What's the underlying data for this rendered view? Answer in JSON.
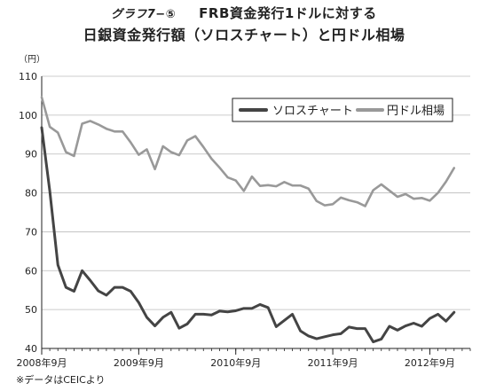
{
  "header": {
    "label": "グラフ7−⑤",
    "title_line1": "FRB資金発行1ドルに対する",
    "title_line2": "日銀資金発行額（ソロスチャート）と円ドル相場"
  },
  "footer": {
    "note": "※データはCEICより"
  },
  "chart_data": {
    "type": "line",
    "yunit": "（円）",
    "ylim": [
      40,
      110
    ],
    "yticks": [
      40,
      50,
      60,
      70,
      80,
      90,
      100,
      110
    ],
    "xlim": [
      0,
      53
    ],
    "xticks": [
      {
        "x": 0,
        "label": "2008年9月"
      },
      {
        "x": 12,
        "label": "2009年9月"
      },
      {
        "x": 24,
        "label": "2010年9月"
      },
      {
        "x": 36,
        "label": "2011年9月"
      },
      {
        "x": 48,
        "label": "2012年9月"
      }
    ],
    "grid": "horizontal",
    "legend_position": "top-right",
    "series": [
      {
        "name": "ソロスチャート",
        "color": "#444444",
        "values": [
          96.8,
          80.5,
          61.5,
          55.7,
          54.7,
          60.0,
          57.5,
          54.8,
          53.7,
          55.7,
          55.7,
          54.7,
          51.8,
          48.0,
          45.8,
          48.0,
          49.3,
          45.2,
          46.3,
          48.8,
          48.8,
          48.6,
          49.6,
          49.4,
          49.7,
          50.3,
          50.3,
          51.3,
          50.5,
          45.6,
          47.2,
          48.8,
          44.5,
          43.2,
          42.5,
          43.0,
          43.5,
          43.8,
          45.5,
          45.1,
          45.1,
          41.7,
          42.4,
          45.7,
          44.7,
          45.8,
          46.5,
          45.7,
          47.7,
          48.8,
          47.0,
          49.3
        ]
      },
      {
        "name": "円ドル相場",
        "color": "#999999",
        "values": [
          104.6,
          97.0,
          95.5,
          90.5,
          89.5,
          97.8,
          98.5,
          97.6,
          96.5,
          95.8,
          95.8,
          93.0,
          89.8,
          91.2,
          86.1,
          92.0,
          90.5,
          89.7,
          93.5,
          94.6,
          91.8,
          88.8,
          86.5,
          84.0,
          83.2,
          80.5,
          84.2,
          81.8,
          82.0,
          81.7,
          82.8,
          81.9,
          81.9,
          81.1,
          77.9,
          76.8,
          77.1,
          78.8,
          78.1,
          77.6,
          76.6,
          80.7,
          82.2,
          80.6,
          79.0,
          79.7,
          78.5,
          78.7,
          78.0,
          80.0,
          82.9,
          86.4
        ]
      }
    ]
  }
}
